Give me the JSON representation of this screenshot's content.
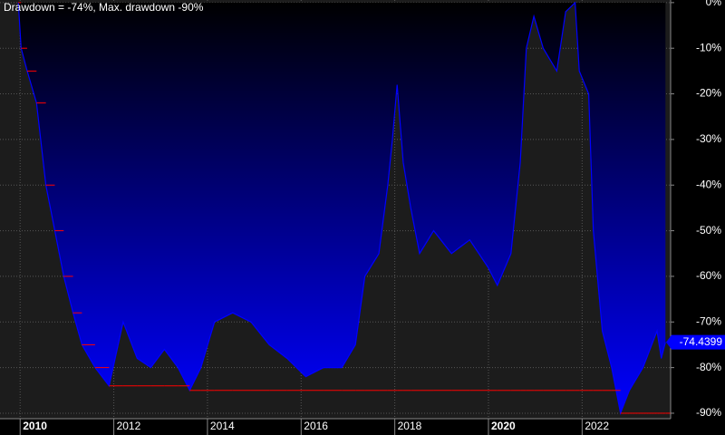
{
  "chart_data": {
    "type": "area",
    "title": "Drawdown = -74%, Max. drawdown -90%",
    "x": [
      2009.96,
      2010.02,
      2010.15,
      2010.35,
      2010.55,
      2010.74,
      2010.93,
      2011.13,
      2011.32,
      2011.6,
      2011.9,
      2012.2,
      2012.5,
      2012.79,
      2013.08,
      2013.37,
      2013.62,
      2013.86,
      2014.15,
      2014.54,
      2014.93,
      2015.32,
      2015.7,
      2016.1,
      2016.48,
      2016.87,
      2017.16,
      2017.36,
      2017.66,
      2017.85,
      2017.95,
      2018.05,
      2018.18,
      2018.34,
      2018.53,
      2018.83,
      2019.21,
      2019.6,
      2019.99,
      2020.19,
      2020.48,
      2020.68,
      2020.81,
      2020.97,
      2021.17,
      2021.46,
      2021.65,
      2021.85,
      2021.94,
      2022.14,
      2022.24,
      2022.43,
      2022.63,
      2022.82,
      2023.01,
      2023.3,
      2023.6,
      2023.69,
      2023.78
    ],
    "series": [
      {
        "color": "#0000ff",
        "values": [
          0,
          -10,
          -15,
          -22,
          -40,
          -50,
          -60,
          -68,
          -75,
          -80,
          -84,
          -70,
          -78,
          -80,
          -76,
          -80,
          -85,
          -80,
          -70,
          -68,
          -70,
          -75,
          -78,
          -82,
          -80,
          -80,
          -75,
          -60,
          -55,
          -40,
          -30,
          -18,
          -35,
          -45,
          -55,
          -50,
          -55,
          -52,
          -58,
          -62,
          -55,
          -35,
          -10,
          -3,
          -10,
          -15,
          -2,
          0,
          -15,
          -20,
          -50,
          -72,
          -80,
          -90,
          -85,
          -80,
          -72,
          -78,
          -74.4399
        ],
        "value_labels": [
          null,
          null,
          null,
          null,
          null,
          null,
          null,
          null,
          null,
          null,
          null,
          null,
          null,
          null,
          null,
          null,
          null,
          null,
          null,
          null,
          null,
          null,
          null,
          null,
          null,
          null,
          null,
          null,
          null,
          null,
          null,
          null,
          null,
          null,
          null,
          null,
          null,
          null,
          null,
          null,
          null,
          null,
          null,
          null,
          null,
          null,
          null,
          null,
          null,
          null,
          null,
          null,
          null,
          null,
          null,
          null,
          null,
          null,
          "-74.4399"
        ]
      },
      {
        "color": "#ff0000",
        "values": [
          0,
          -10,
          -15,
          -22,
          -40,
          -50,
          -60,
          -68,
          -75,
          -80,
          -84,
          -84,
          -84,
          -84,
          -84,
          -84,
          -85,
          -85,
          -85,
          -85,
          -85,
          -85,
          -85,
          -85,
          -85,
          -85,
          -85,
          -85,
          -85,
          -85,
          -85,
          -85,
          -85,
          -85,
          -85,
          -85,
          -85,
          -85,
          -85,
          -85,
          -85,
          -85,
          -85,
          -85,
          -85,
          -85,
          -85,
          -85,
          -85,
          -85,
          -85,
          -85,
          -85,
          -90,
          -90,
          -90,
          -90,
          -90,
          -90
        ]
      }
    ],
    "xlim": [
      2009.57,
      2023.89
    ],
    "xticks": [
      2010,
      2012,
      2014,
      2016,
      2018,
      2020,
      2022
    ],
    "ylim": [
      -91.2,
      0.57
    ],
    "yticks": [
      {
        "value": 0,
        "label": "0%"
      },
      {
        "value": -10,
        "label": "-10%"
      },
      {
        "value": -20,
        "label": "-20%"
      },
      {
        "value": -30,
        "label": "-30%"
      },
      {
        "value": -40,
        "label": "-40%"
      },
      {
        "value": -50,
        "label": "-50%"
      },
      {
        "value": -60,
        "label": "-60%"
      },
      {
        "value": -70,
        "label": "-70%"
      },
      {
        "value": -80,
        "label": "-80%"
      },
      {
        "value": -90,
        "label": "-90%"
      }
    ],
    "grid": true
  }
}
